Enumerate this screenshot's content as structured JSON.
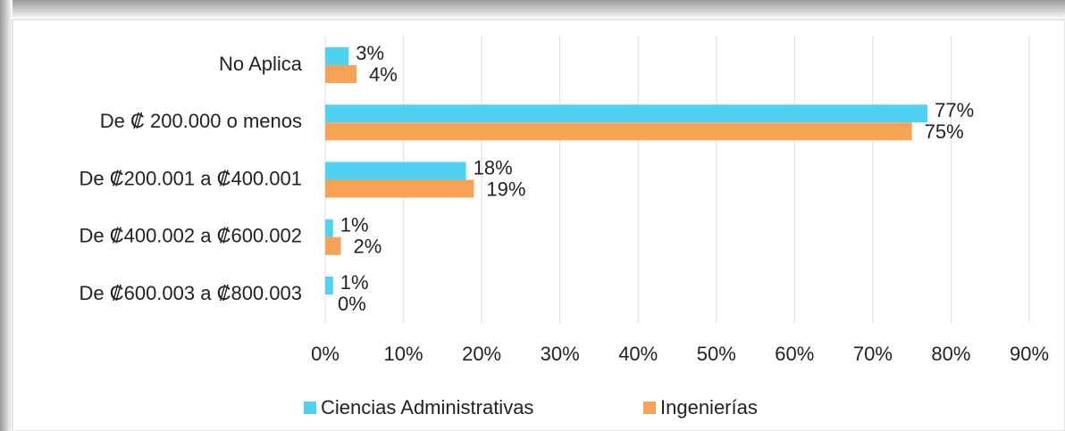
{
  "chart_data": {
    "type": "hbar",
    "categories": [
      "No Aplica",
      "De ₡ 200.000 o menos",
      "De ₡200.001 a ₡400.001",
      "De ₡400.002 a ₡600.002",
      "De ₡600.003 a ₡800.003"
    ],
    "series": [
      {
        "name": "Ciencias Administrativas",
        "color": "#4fd2f2",
        "values": [
          3,
          77,
          18,
          1,
          1
        ],
        "value_labels": [
          "3%",
          "77%",
          "18%",
          "1%",
          "1%"
        ]
      },
      {
        "name": "Ingenierías",
        "color": "#f7a254",
        "values": [
          4,
          75,
          19,
          2,
          0
        ],
        "value_labels": [
          "4%",
          "75%",
          "19%",
          "2%",
          "0%"
        ]
      }
    ],
    "xlim": [
      0,
      90
    ],
    "xticks": [
      {
        "value": 0,
        "label": "0%"
      },
      {
        "value": 10,
        "label": "10%"
      },
      {
        "value": 20,
        "label": "20%"
      },
      {
        "value": 30,
        "label": "30%"
      },
      {
        "value": 40,
        "label": "40%"
      },
      {
        "value": 50,
        "label": "50%"
      },
      {
        "value": 60,
        "label": "60%"
      },
      {
        "value": 70,
        "label": "70%"
      },
      {
        "value": 80,
        "label": "80%"
      },
      {
        "value": 90,
        "label": "90%"
      }
    ],
    "grid": true
  }
}
